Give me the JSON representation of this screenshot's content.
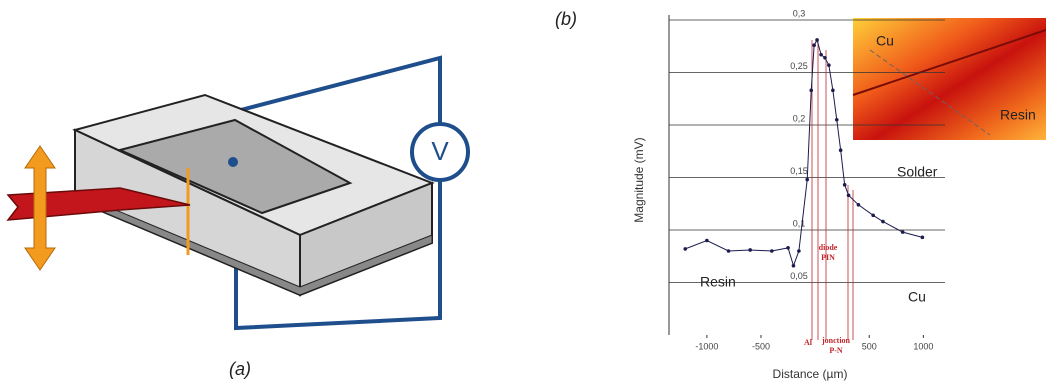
{
  "panel_a": {
    "label": "(a)",
    "meter": "V"
  },
  "chart_data": {
    "type": "line",
    "title": "(b)",
    "x_label": "Distance (µm)",
    "y_label": "Magnitude (mV)",
    "x": [
      -1200,
      -1000,
      -800,
      -600,
      -400,
      -250,
      -200,
      -150,
      -73,
      -36,
      -9,
      18,
      55,
      91,
      127,
      164,
      200,
      236,
      273,
      309,
      400,
      536,
      627,
      809,
      991
    ],
    "series": [
      {
        "color": "#1c1c4e",
        "values": [
          0.082,
          0.09,
          0.08,
          0.081,
          0.08,
          0.083,
          0.066,
          0.08,
          0.148,
          0.233,
          0.276,
          0.281,
          0.267,
          0.264,
          0.257,
          0.233,
          0.205,
          0.176,
          0.143,
          0.133,
          0.124,
          0.114,
          0.108,
          0.098,
          0.093
        ]
      }
    ],
    "xlim": [
      -1350,
      1200
    ],
    "ylim": [
      0,
      0.3
    ],
    "xticks": [
      -1000,
      -500,
      500,
      1000
    ],
    "yticks": [
      {
        "value": 0.05,
        "label": "0,05"
      },
      {
        "value": 0.1,
        "label": "0,1"
      },
      {
        "value": 0.15,
        "label": "0,15"
      },
      {
        "value": 0.2,
        "label": "0,2"
      },
      {
        "value": 0.25,
        "label": "0,25"
      },
      {
        "value": 0.3,
        "label": "0,3"
      }
    ],
    "grid": true,
    "annotations": [
      "Resin",
      "Solder",
      "Cu",
      "diode",
      "PIN",
      "Al",
      "jonction",
      "P-N"
    ],
    "inset_labels": [
      "Cu",
      "Resin"
    ]
  }
}
